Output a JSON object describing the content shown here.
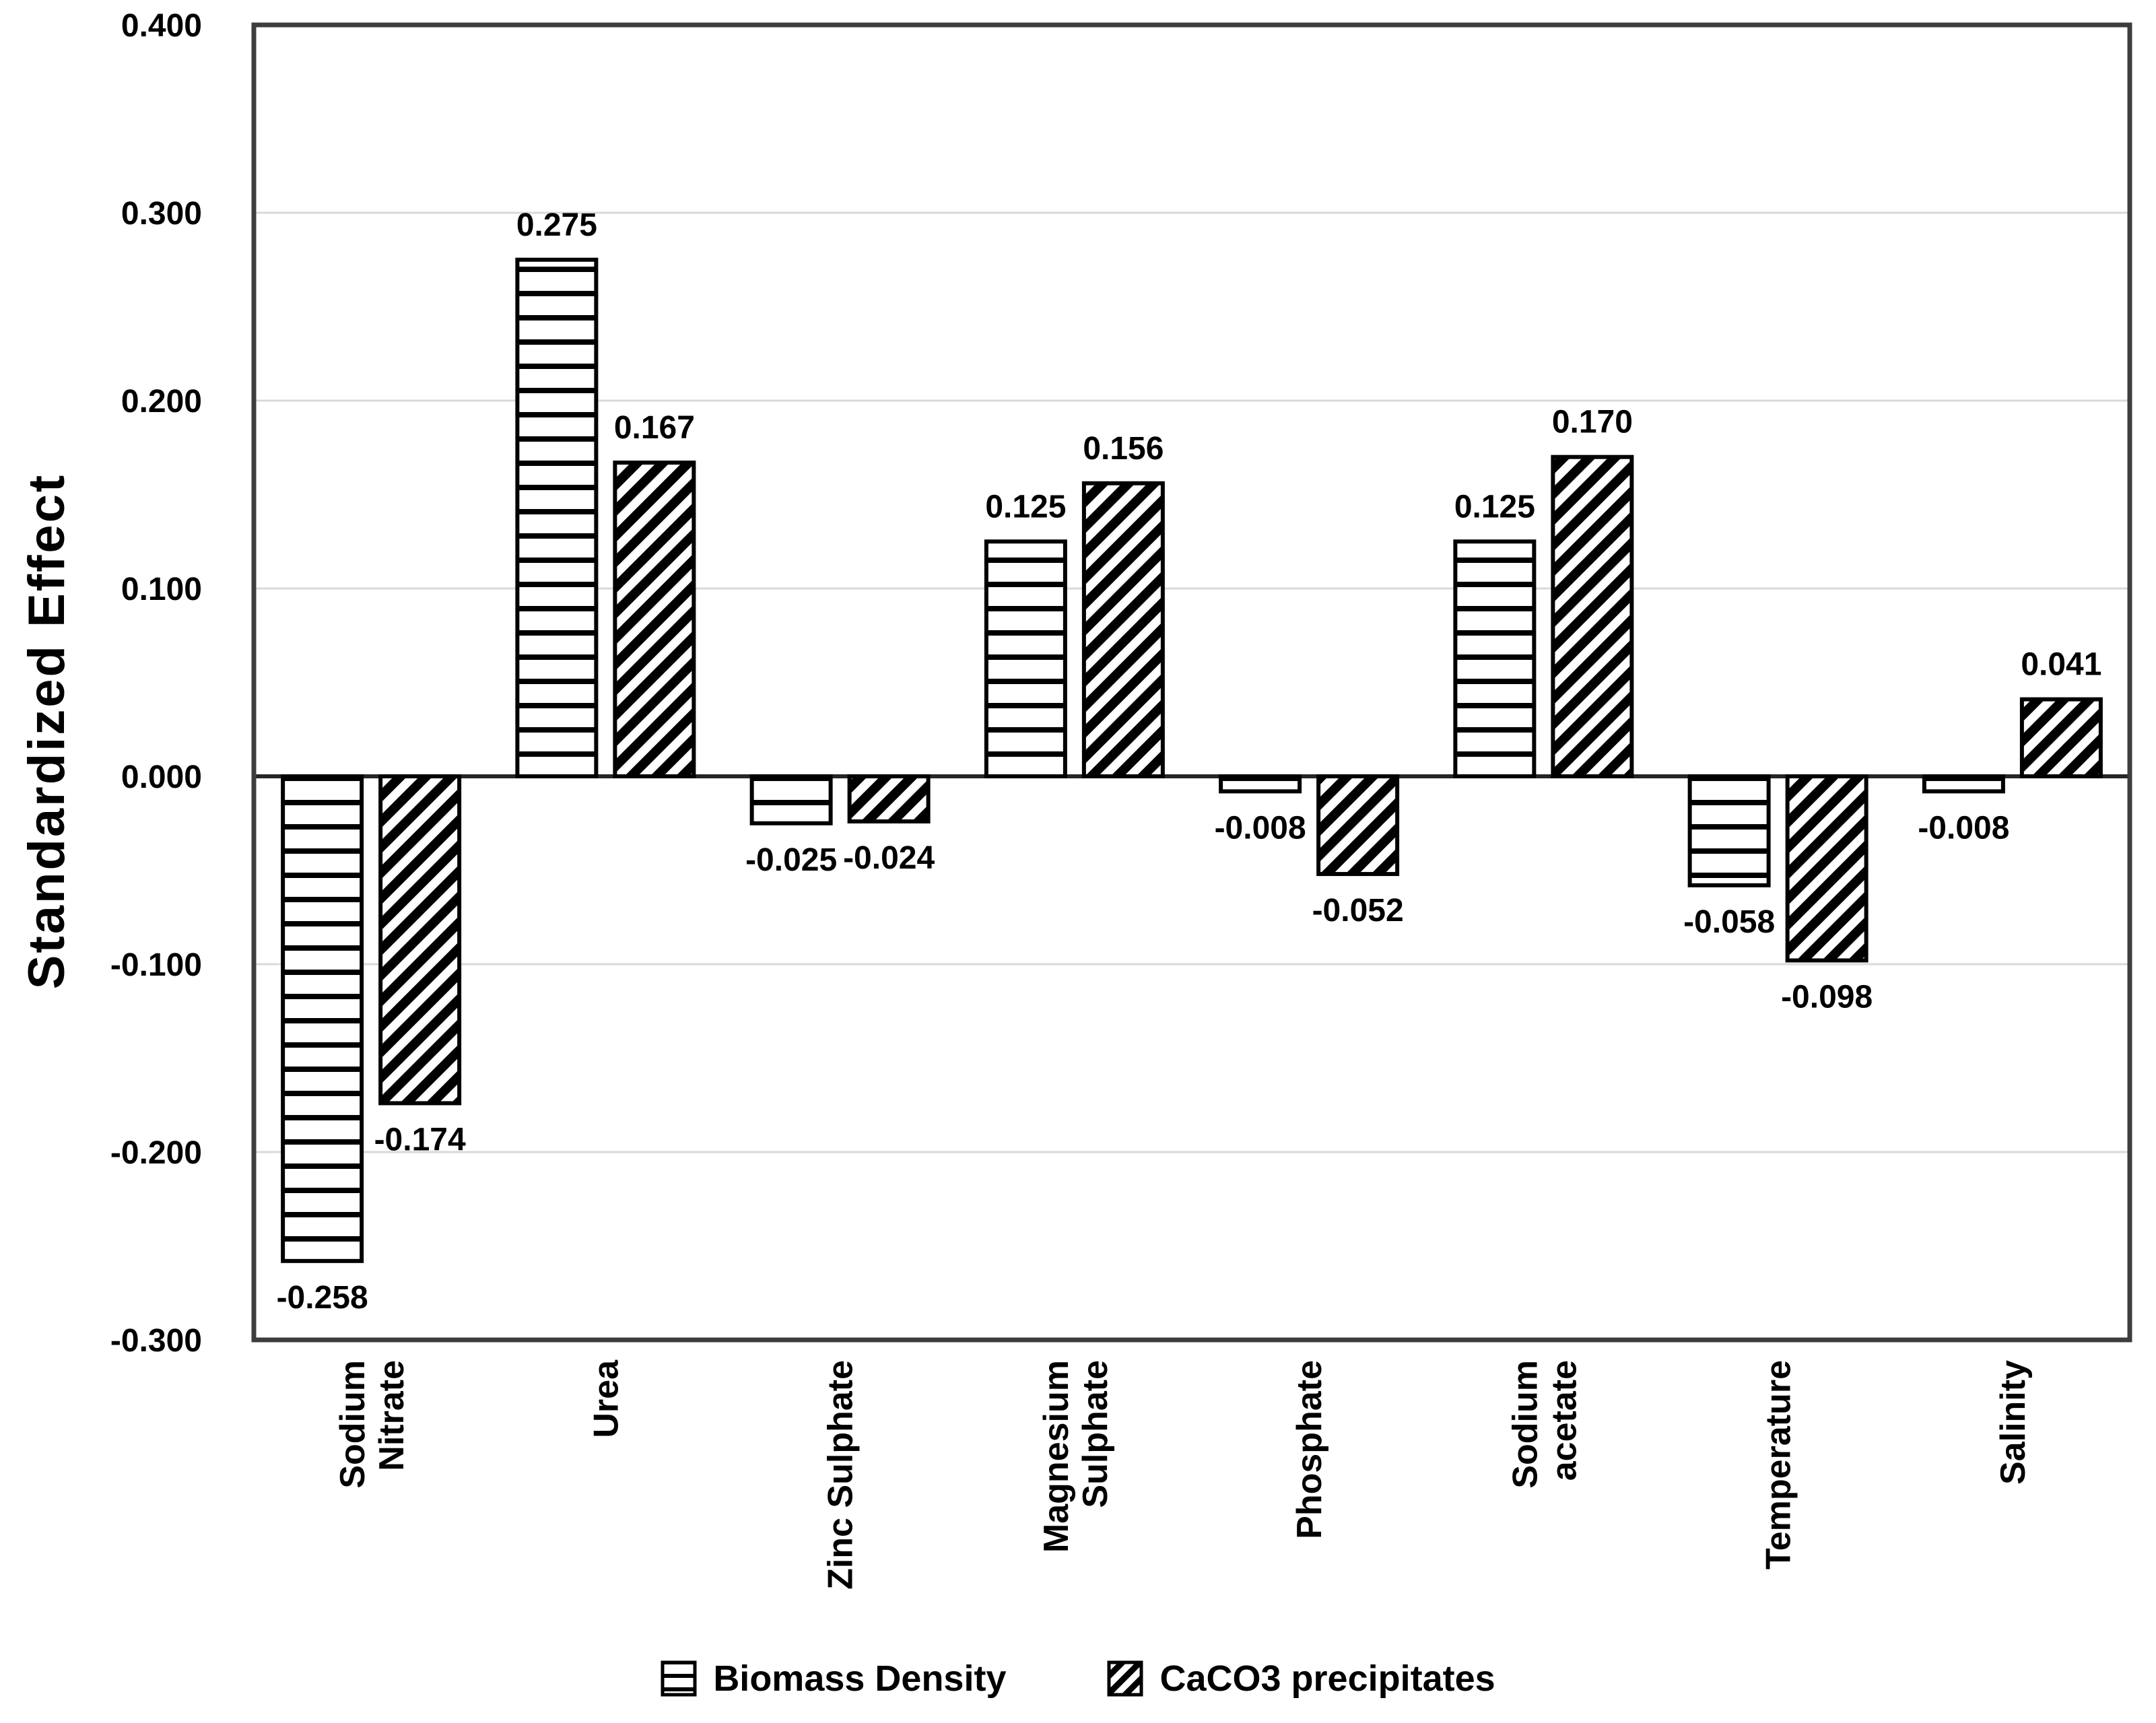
{
  "page": {
    "background": "#ffffff"
  },
  "chart_data": {
    "type": "bar",
    "title": "",
    "xlabel": "",
    "ylabel": "Standardized Effect",
    "categories": [
      "Sodium\nNitrate",
      "Urea",
      "Zinc Sulphate",
      "Magnesium\nSulphate",
      "Phosphate",
      "Sodium\nacetate",
      "Temperature",
      "Salinity"
    ],
    "series": [
      {
        "name": "Biomass Density",
        "pattern": "horizontal-stripes",
        "values": [
          -0.258,
          0.275,
          -0.025,
          0.125,
          -0.008,
          0.125,
          -0.058,
          -0.008
        ]
      },
      {
        "name": "CaCO3 precipitates",
        "pattern": "diagonal-stripes",
        "values": [
          -0.174,
          0.167,
          -0.024,
          0.156,
          -0.052,
          0.17,
          -0.098,
          0.041
        ]
      }
    ],
    "data_label_decimals": 3,
    "ylim": [
      -0.3,
      0.4
    ],
    "ytick_step": 0.1,
    "ytick_labels": [
      "0.400",
      "0.300",
      "0.200",
      "0.100",
      "0.000",
      "-0.100",
      "-0.200",
      "-0.300"
    ],
    "grid": true,
    "legend_position": "bottom",
    "colors": {
      "bar_fill": "#ffffff",
      "bar_stroke": "#000000",
      "grid": "#d9d9d9",
      "axis": "#3d3d3d",
      "text": "#000000"
    }
  }
}
